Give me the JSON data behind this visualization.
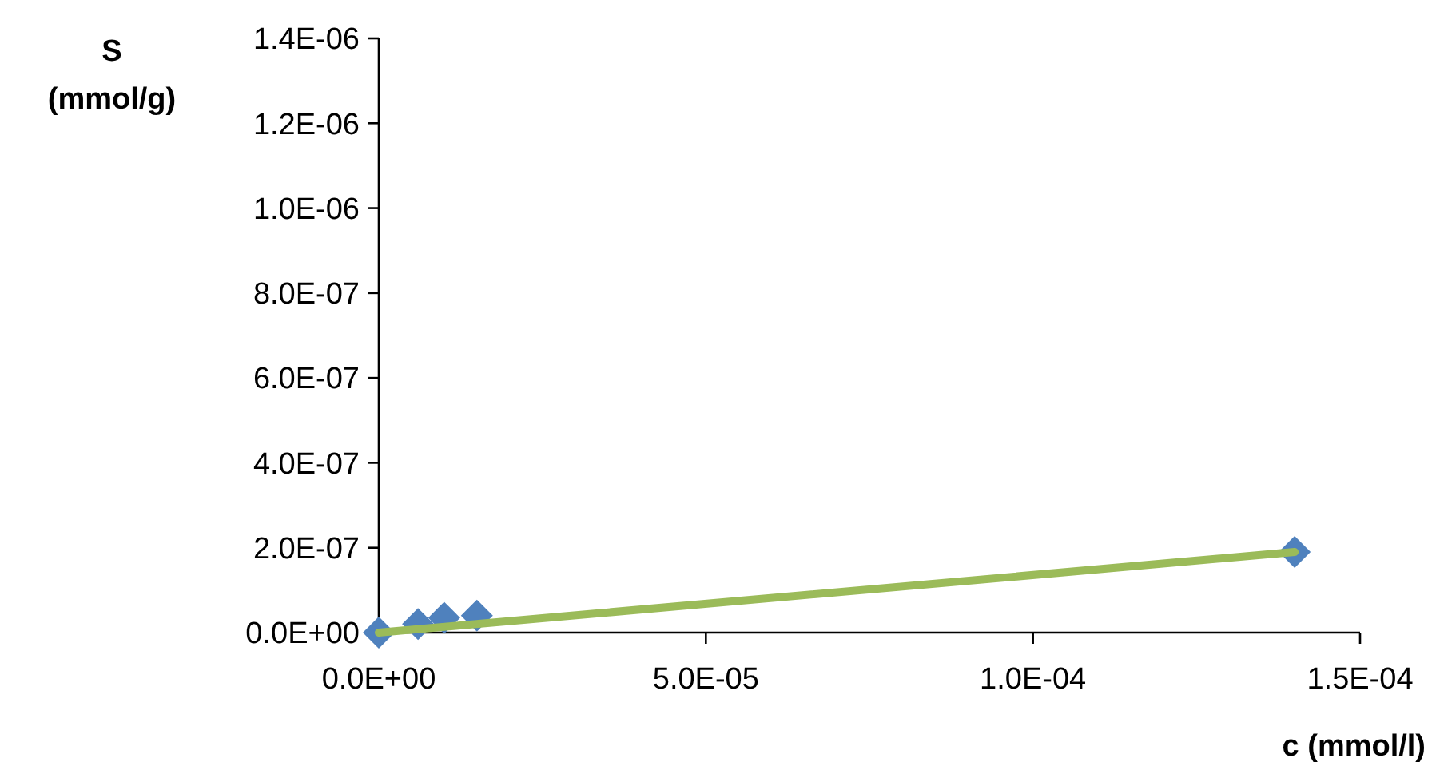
{
  "chart_data": {
    "type": "scatter",
    "xlabel": "c (mmol/l)",
    "ylabel": "S\n(mmol/g)",
    "xlim": [
      0,
      0.00015
    ],
    "xticks": [
      {
        "value": 0,
        "label": "0.0E+00"
      },
      {
        "value": 5e-05,
        "label": "5.0E-05"
      },
      {
        "value": 0.0001,
        "label": "1.0E-04"
      },
      {
        "value": 0.00015,
        "label": "1.5E-04"
      }
    ],
    "ylim": [
      0,
      1.4e-06
    ],
    "yticks": [
      {
        "value": 0,
        "label": "0.0E+00"
      },
      {
        "value": 2e-07,
        "label": "2.0E-07"
      },
      {
        "value": 4e-07,
        "label": "4.0E-07"
      },
      {
        "value": 6e-07,
        "label": "6.0E-07"
      },
      {
        "value": 8e-07,
        "label": "8.0E-07"
      },
      {
        "value": 1e-06,
        "label": "1.0E-06"
      },
      {
        "value": 1.2e-06,
        "label": "1.2E-06"
      },
      {
        "value": 1.4e-06,
        "label": "1.4E-06"
      }
    ],
    "grid": false,
    "series": [
      {
        "marker": "diamond",
        "color": "#4f81bd",
        "x": [
          0,
          6e-06,
          1e-05,
          1.5e-05,
          0.00014
        ],
        "values": [
          0,
          2e-08,
          3.5e-08,
          4e-08,
          1.9e-07
        ]
      },
      {
        "type": "line",
        "marker": "none",
        "color": "#9bbb59",
        "x": [
          0,
          0.00014
        ],
        "values": [
          0,
          1.9e-07
        ]
      }
    ]
  }
}
